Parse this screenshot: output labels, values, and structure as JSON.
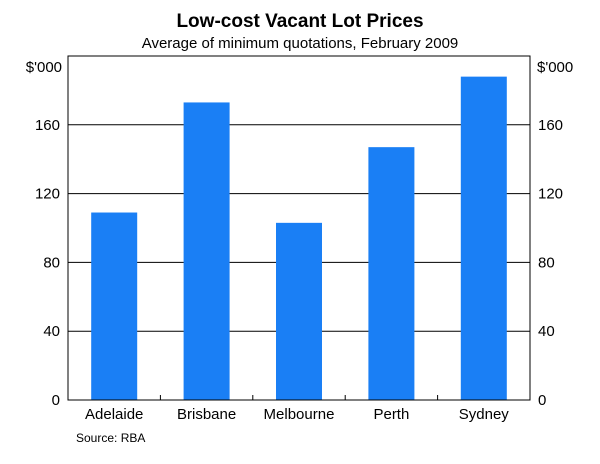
{
  "chart_data": {
    "type": "bar",
    "title": "Low-cost Vacant Lot Prices",
    "subtitle": "Average of minimum quotations, February 2009",
    "y_unit_left": "$'000",
    "y_unit_right": "$'000",
    "categories": [
      "Adelaide",
      "Brisbane",
      "Melbourne",
      "Perth",
      "Sydney"
    ],
    "values": [
      109,
      173,
      103,
      147,
      188
    ],
    "ylim": [
      0,
      200
    ],
    "yticks": [
      0,
      40,
      80,
      120,
      160
    ],
    "grid": true,
    "bar_color": "#1a7ff5",
    "source": "Source: RBA"
  }
}
